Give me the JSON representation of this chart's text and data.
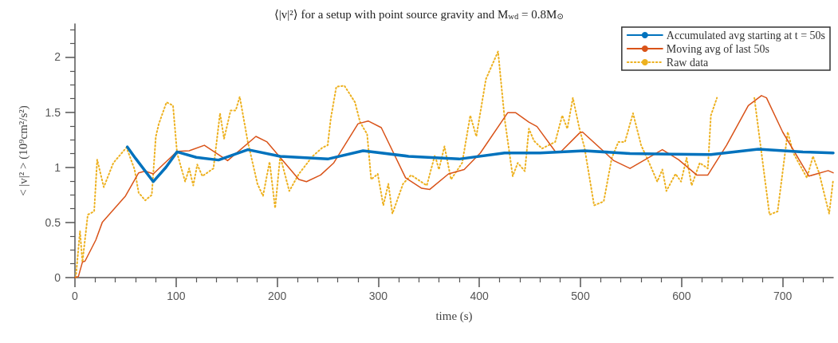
{
  "chart_data": {
    "type": "line",
    "title": "⟨|v|²⟩ for a setup with point source gravity and M$_{wd}$ = 0.8M$_{⊙}$",
    "xlabel": "time (s)",
    "ylabel": "< |v|² > (10⁹cm²/s²)",
    "xlim": [
      0,
      750
    ],
    "xticks": [
      0,
      100,
      200,
      300,
      400,
      500,
      600,
      700
    ],
    "ylim": [
      0,
      2.3
    ],
    "yticks": [
      0,
      0.5,
      1,
      1.5,
      2
    ],
    "grid": false,
    "legend": "top right",
    "series": [
      {
        "name": "Accumulated avg starting at t = 50s",
        "color": "#0072bd",
        "line_style": "solid",
        "x": [
          51.8,
          60,
          77.5,
          90,
          101,
          120,
          142,
          171,
          203,
          250,
          285,
          330,
          380,
          425,
          460,
          504,
          549,
          590,
          629,
          676,
          720,
          750
        ],
        "values": [
          1.185,
          1.08,
          0.87,
          1.0,
          1.14,
          1.09,
          1.066,
          1.16,
          1.1,
          1.075,
          1.15,
          1.1,
          1.075,
          1.13,
          1.13,
          1.15,
          1.125,
          1.12,
          1.115,
          1.165,
          1.14,
          1.13
        ]
      },
      {
        "name": "Moving avg of last 50s",
        "color": "#d95319",
        "line_style": "solid",
        "x": [
          0,
          3.4,
          7.4,
          10,
          20.6,
          27,
          50,
          63,
          69.5,
          77.5,
          101,
          113,
          128,
          151,
          179,
          190,
          221.5,
          229,
          243,
          256,
          280,
          290,
          303,
          327,
          343,
          351,
          369.5,
          385,
          401,
          428,
          436,
          449,
          457,
          475,
          481,
          499,
          502,
          533,
          549,
          581,
          597,
          615,
          626,
          644.5,
          666,
          679,
          684,
          700,
          726,
          745,
          750
        ],
        "values": [
          0,
          0.01,
          0.14,
          0.15,
          0.34,
          0.5,
          0.74,
          0.95,
          0.965,
          0.94,
          1.145,
          1.15,
          1.2,
          1.06,
          1.28,
          1.23,
          0.89,
          0.87,
          0.93,
          1.04,
          1.395,
          1.42,
          1.36,
          0.905,
          0.81,
          0.8,
          0.94,
          0.98,
          1.13,
          1.495,
          1.495,
          1.41,
          1.37,
          1.145,
          1.145,
          1.31,
          1.32,
          1.06,
          0.99,
          1.16,
          1.07,
          0.93,
          0.93,
          1.2,
          1.56,
          1.65,
          1.63,
          1.32,
          0.92,
          0.97,
          0.95
        ]
      },
      {
        "name": "Raw data",
        "color": "#edb120",
        "line_style": "dotted",
        "x": [
          0.8,
          5,
          7.4,
          12.7,
          19,
          22,
          28.5,
          38,
          51,
          59,
          63,
          69.5,
          76,
          80,
          83,
          90.6,
          97,
          101,
          109,
          113,
          117,
          121,
          126,
          137,
          143.5,
          147.5,
          154,
          159,
          163,
          171,
          180.5,
          186,
          192.5,
          198,
          203,
          212,
          221.5,
          235,
          245,
          250,
          253,
          258.5,
          266.5,
          277,
          282,
          289,
          293,
          299.5,
          305,
          310,
          314,
          324.5,
          332.5,
          348,
          356,
          360,
          365.5,
          372,
          383,
          391,
          397,
          406.5,
          418.5,
          425,
          433,
          438,
          445,
          449,
          454,
          462,
          475,
          482,
          487,
          492.5,
          499,
          504,
          513.5,
          523,
          531,
          537.5,
          544,
          552,
          560,
          568,
          576,
          581,
          585,
          594,
          599.5,
          605,
          610,
          618,
          626,
          629,
          635,
          655,
          672,
          687,
          695,
          705,
          710.5,
          724,
          730,
          736,
          746,
          750
        ],
        "values": [
          0,
          0.42,
          0.14,
          0.57,
          0.6,
          1.07,
          0.82,
          1.04,
          1.18,
          0.98,
          0.77,
          0.7,
          0.75,
          1.28,
          1.395,
          1.59,
          1.56,
          1.13,
          0.87,
          0.99,
          0.835,
          1.025,
          0.92,
          0.99,
          1.49,
          1.26,
          1.515,
          1.515,
          1.64,
          1.23,
          0.85,
          0.74,
          1.05,
          0.63,
          1.1,
          0.785,
          0.94,
          1.1,
          1.18,
          1.2,
          1.44,
          1.73,
          1.74,
          1.59,
          1.41,
          1.3,
          0.89,
          0.94,
          0.655,
          0.85,
          0.58,
          0.85,
          0.93,
          0.835,
          1.11,
          0.98,
          1.19,
          0.89,
          1.04,
          1.47,
          1.28,
          1.8,
          2.05,
          1.44,
          0.92,
          1.04,
          0.965,
          1.35,
          1.24,
          1.17,
          1.23,
          1.47,
          1.35,
          1.63,
          1.35,
          1.18,
          0.655,
          0.69,
          1.085,
          1.23,
          1.23,
          1.49,
          1.2,
          1.04,
          0.87,
          0.98,
          0.785,
          0.94,
          0.87,
          1.085,
          0.835,
          1.04,
          0.99,
          1.47,
          1.63,
          null,
          1.63,
          0.57,
          0.6,
          1.32,
          1.13,
          0.905,
          1.1,
          0.95,
          0.58,
          0.89
        ]
      }
    ]
  }
}
